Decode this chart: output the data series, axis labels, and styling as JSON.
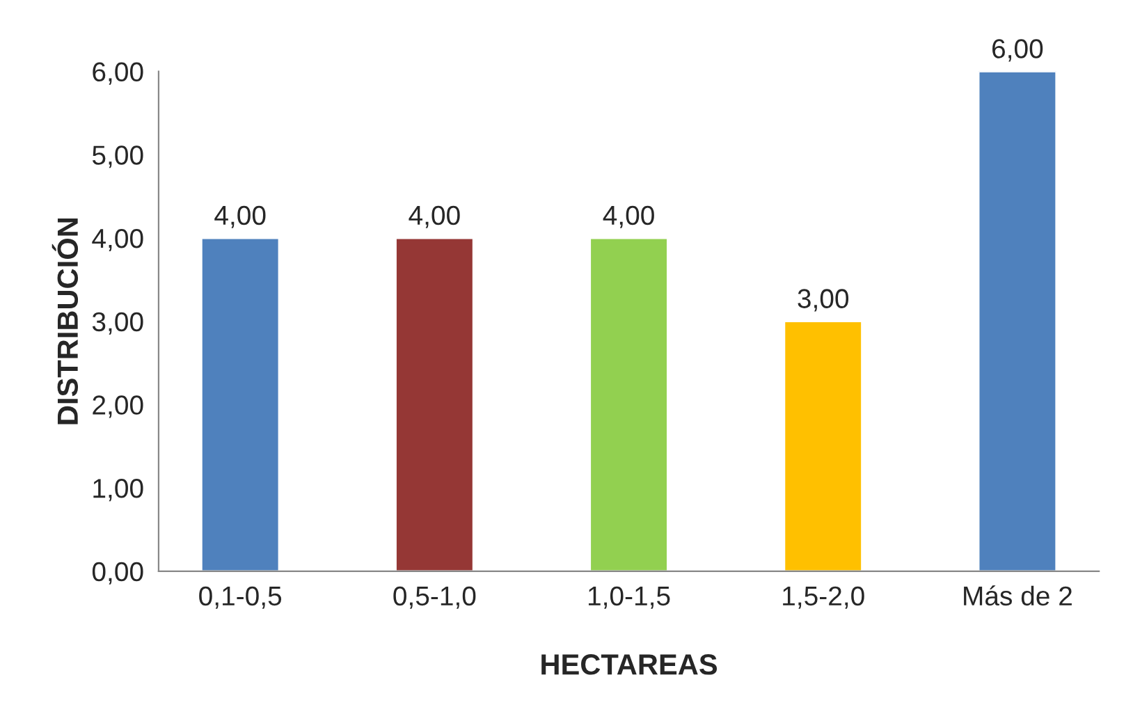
{
  "chart_data": {
    "type": "bar",
    "xlabel": "HECTAREAS",
    "ylabel": "DISTRIBUCIÓN",
    "categories": [
      "0,1-0,5",
      "0,5-1,0",
      "1,0-1,5",
      "1,5-2,0",
      "Más de 2"
    ],
    "values": [
      4,
      4,
      4,
      3,
      6
    ],
    "colors": [
      "#4f81bd",
      "#953735",
      "#92d050",
      "#ffc000",
      "#4f81bd"
    ],
    "value_labels": [
      "4,00",
      "4,00",
      "4,00",
      "3,00",
      "6,00"
    ],
    "ylim": [
      0,
      6
    ],
    "yticks": [
      {
        "value": 0,
        "label": "0,00"
      },
      {
        "value": 1,
        "label": "1,00"
      },
      {
        "value": 2,
        "label": "2,00"
      },
      {
        "value": 3,
        "label": "3,00"
      },
      {
        "value": 4,
        "label": "4,00"
      },
      {
        "value": 5,
        "label": "5,00"
      },
      {
        "value": 6,
        "label": "6,00"
      }
    ],
    "grid": false,
    "legend": false
  }
}
